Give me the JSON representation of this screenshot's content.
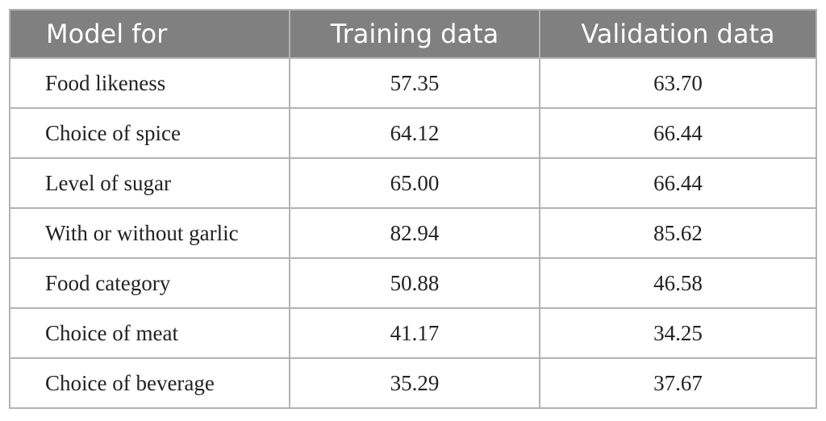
{
  "table": {
    "header": [
      "Model for",
      "Training data",
      "Validation data"
    ],
    "rows": [
      [
        "Food likeness",
        "57.35",
        "63.70"
      ],
      [
        "Choice of spice",
        "64.12",
        "66.44"
      ],
      [
        "Level of sugar",
        "65.00",
        "66.44"
      ],
      [
        "With or without garlic",
        "82.94",
        "85.62"
      ],
      [
        "Food category",
        "50.88",
        "46.58"
      ],
      [
        "Choice of meat",
        "41.17",
        "34.25"
      ],
      [
        "Choice of beverage",
        "35.29",
        "37.67"
      ]
    ]
  }
}
